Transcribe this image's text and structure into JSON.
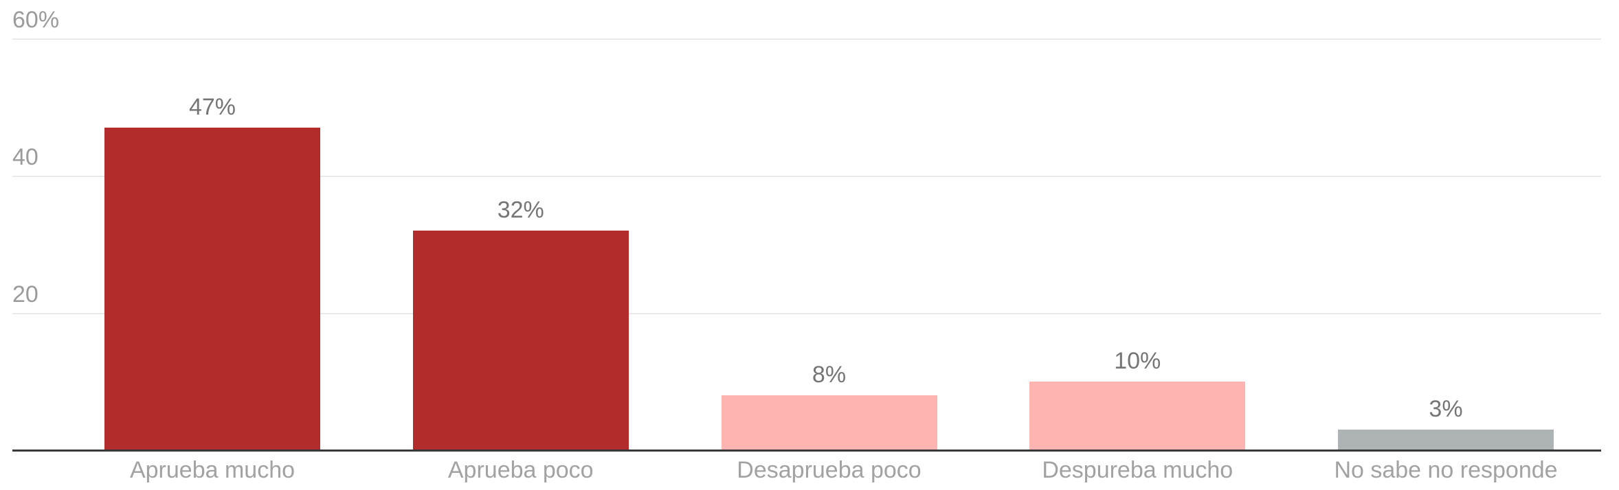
{
  "chart_data": {
    "type": "bar",
    "categories": [
      "Aprueba mucho",
      "Aprueba poco",
      "Desaprueba poco",
      "Despureba mucho",
      "No sabe no responde"
    ],
    "values": [
      47,
      32,
      8,
      10,
      3
    ],
    "value_labels": [
      "47%",
      "32%",
      "8%",
      "10%",
      "3%"
    ],
    "bar_colors": [
      "#b22c2c",
      "#b22c2c",
      "#feb4b1",
      "#feb4b1",
      "#aeb4b5"
    ],
    "title": "",
    "xlabel": "",
    "ylabel": "",
    "ylim": [
      0,
      60
    ],
    "yticks": [
      {
        "value": 60,
        "label": "60%"
      },
      {
        "value": 40,
        "label": "40"
      },
      {
        "value": 20,
        "label": "20"
      }
    ],
    "grid": true,
    "legend": false,
    "value_labels_position": "above-bars",
    "category_labels_position": "below-axis"
  },
  "colors": {
    "bar_strong_red": "#b22c2c",
    "bar_light_pink": "#feb4b1",
    "bar_neutral_gray": "#aeb4b5",
    "gridline": "#e9e9e9",
    "axis_line": "#37393a",
    "ytick_label": "#9b9b9b",
    "value_label": "#757575",
    "category_label": "#a2a2a2",
    "background": "#ffffff"
  }
}
